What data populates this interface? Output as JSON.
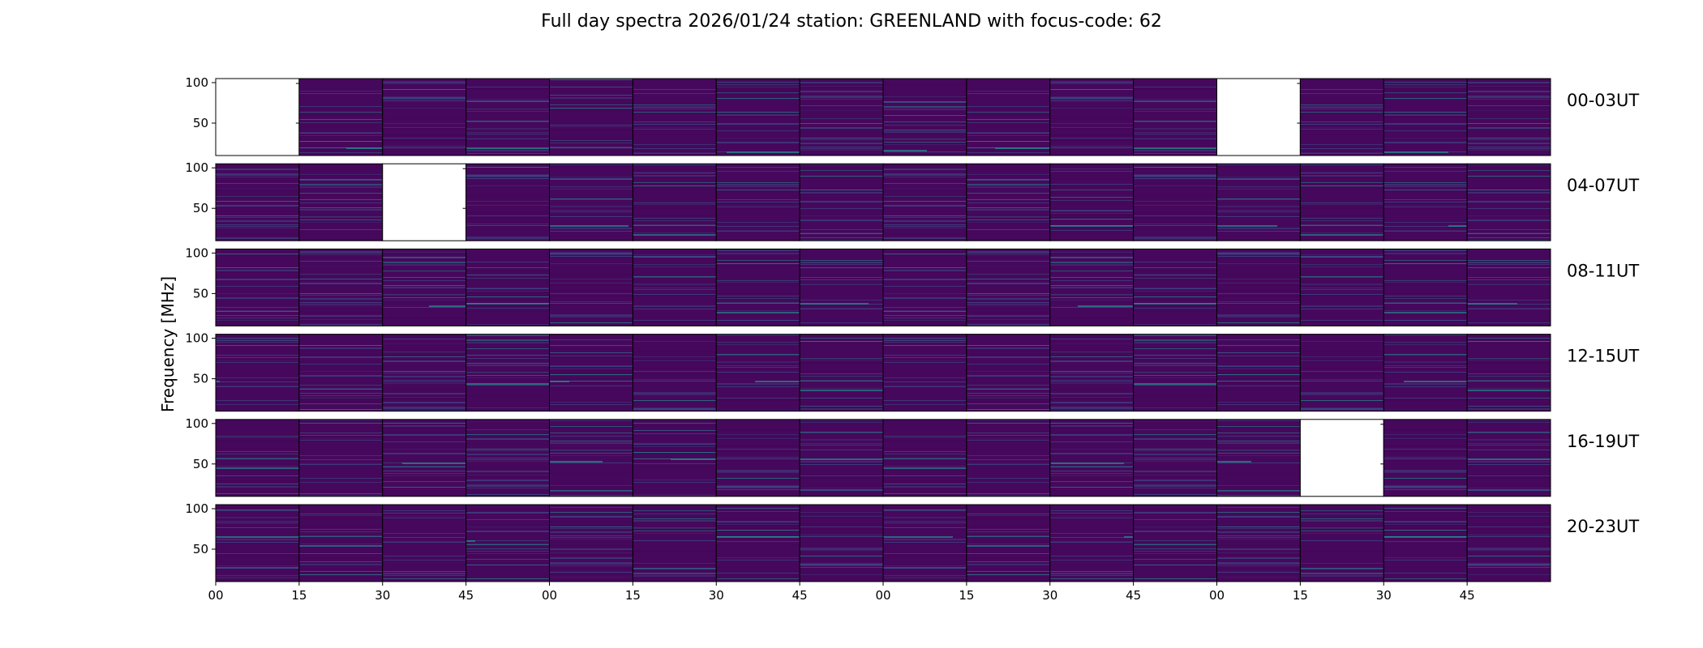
{
  "chart_data": {
    "type": "heatmap",
    "title": "Full day spectra 2026/01/24 station: GREENLAND with focus-code: 62",
    "ylabel": "Frequency [MHz]",
    "xlabel": "",
    "ylim": [
      10,
      105
    ],
    "yticks": [
      50,
      100
    ],
    "xtick_labels": [
      "00",
      "15",
      "30",
      "45",
      "00",
      "15",
      "30",
      "45",
      "00",
      "15",
      "30",
      "45",
      "00",
      "15",
      "30",
      "45"
    ],
    "colormap": "viridis",
    "columns_per_row": 16,
    "rows": [
      {
        "label": "00-03UT",
        "missing_panels": [
          0,
          12
        ]
      },
      {
        "label": "04-07UT",
        "missing_panels": [
          2
        ]
      },
      {
        "label": "08-11UT",
        "missing_panels": []
      },
      {
        "label": "12-15UT",
        "missing_panels": []
      },
      {
        "label": "16-19UT",
        "missing_panels": [
          13
        ]
      },
      {
        "label": "20-23UT",
        "missing_panels": []
      }
    ]
  },
  "colors": {
    "background": "#440154",
    "base": "#46085c",
    "mid": "#3b528b",
    "bright": "#21918c",
    "highlight": "#5ec962"
  }
}
